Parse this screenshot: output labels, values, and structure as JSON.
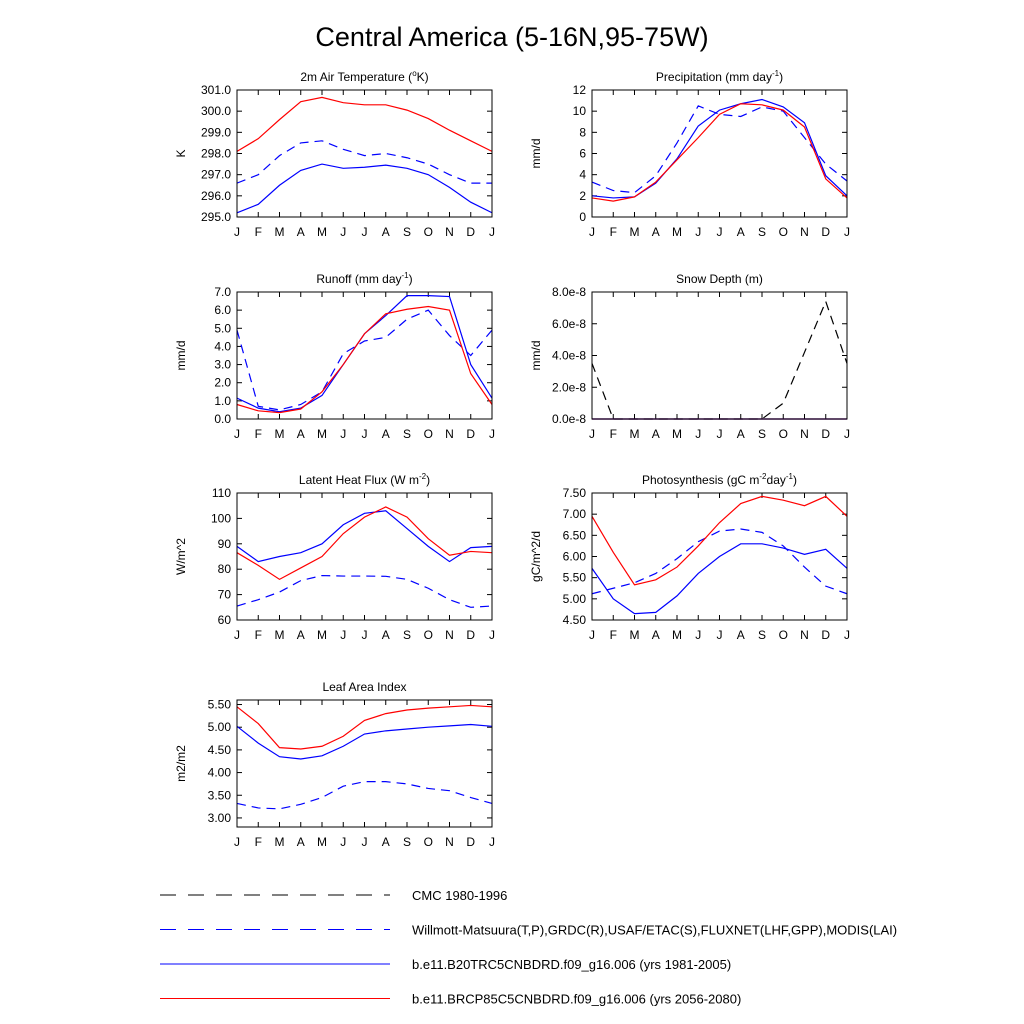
{
  "title": "Central America (5-16N,95-75W)",
  "chart_data": [
    {
      "type": "line",
      "title": [
        {
          "text": "2m Air Temperature ("
        },
        {
          "text": "o",
          "sup": true
        },
        {
          "text": "K)"
        }
      ],
      "y_label": "K",
      "categories": [
        "J",
        "F",
        "M",
        "A",
        "M",
        "J",
        "J",
        "A",
        "S",
        "O",
        "N",
        "D",
        "J"
      ],
      "ylim": [
        295,
        301
      ],
      "yticks": [
        {
          "value": 295,
          "label": "295.0"
        },
        {
          "value": 296,
          "label": "296.0"
        },
        {
          "value": 297,
          "label": "297.0"
        },
        {
          "value": 298,
          "label": "298.0"
        },
        {
          "value": 299,
          "label": "299.0"
        },
        {
          "value": 300,
          "label": "300.0"
        },
        {
          "value": 301,
          "label": "301.0"
        }
      ],
      "series": [
        {
          "color": "#0000ff",
          "dash": true,
          "values": [
            296.6,
            297.0,
            297.9,
            298.5,
            298.6,
            298.2,
            297.9,
            298.0,
            297.8,
            297.5,
            297.0,
            296.6,
            296.6
          ]
        },
        {
          "color": "#0000ff",
          "dash": false,
          "values": [
            295.2,
            295.6,
            296.5,
            297.2,
            297.5,
            297.3,
            297.35,
            297.45,
            297.3,
            297.0,
            296.4,
            295.7,
            295.2
          ]
        },
        {
          "color": "#ff0000",
          "dash": false,
          "values": [
            298.1,
            298.7,
            299.6,
            300.45,
            300.65,
            300.4,
            300.3,
            300.3,
            300.05,
            299.65,
            299.1,
            298.6,
            298.1
          ]
        }
      ]
    },
    {
      "type": "line",
      "title": [
        {
          "text": "Precipitation (mm day"
        },
        {
          "text": "-1",
          "sup": true
        },
        {
          "text": ")"
        }
      ],
      "y_label": "mm/d",
      "categories": [
        "J",
        "F",
        "M",
        "A",
        "M",
        "J",
        "J",
        "A",
        "S",
        "O",
        "N",
        "D",
        "J"
      ],
      "ylim": [
        0,
        12
      ],
      "yticks": [
        0,
        2,
        4,
        6,
        8,
        10,
        12
      ],
      "series": [
        {
          "color": "#0000ff",
          "dash": true,
          "values": [
            3.3,
            2.5,
            2.3,
            3.9,
            7.0,
            10.5,
            9.7,
            9.5,
            10.4,
            10.0,
            7.5,
            5.0,
            3.4
          ]
        },
        {
          "color": "#0000ff",
          "dash": false,
          "values": [
            2.0,
            1.8,
            1.9,
            3.2,
            5.5,
            8.6,
            10.1,
            10.7,
            11.1,
            10.4,
            8.9,
            3.9,
            2.0
          ]
        },
        {
          "color": "#ff0000",
          "dash": false,
          "values": [
            1.8,
            1.5,
            1.9,
            3.3,
            5.4,
            7.5,
            9.7,
            10.7,
            10.6,
            10.1,
            8.5,
            3.6,
            1.8
          ]
        }
      ]
    },
    {
      "type": "line",
      "title": [
        {
          "text": "Runoff (mm day"
        },
        {
          "text": "-1",
          "sup": true
        },
        {
          "text": ")"
        }
      ],
      "y_label": "mm/d",
      "categories": [
        "J",
        "F",
        "M",
        "A",
        "M",
        "J",
        "J",
        "A",
        "S",
        "O",
        "N",
        "D",
        "J"
      ],
      "ylim": [
        0,
        7
      ],
      "yticks": [
        {
          "value": 0,
          "label": "0.0"
        },
        {
          "value": 1,
          "label": "1.0"
        },
        {
          "value": 2,
          "label": "2.0"
        },
        {
          "value": 3,
          "label": "3.0"
        },
        {
          "value": 4,
          "label": "4.0"
        },
        {
          "value": 5,
          "label": "5.0"
        },
        {
          "value": 6,
          "label": "6.0"
        },
        {
          "value": 7,
          "label": "7.0"
        }
      ],
      "series": [
        {
          "color": "#0000ff",
          "dash": true,
          "values": [
            4.9,
            0.7,
            0.5,
            0.8,
            1.5,
            3.6,
            4.3,
            4.5,
            5.5,
            6.0,
            4.6,
            3.5,
            4.9
          ]
        },
        {
          "color": "#0000ff",
          "dash": false,
          "values": [
            1.15,
            0.6,
            0.4,
            0.6,
            1.3,
            3.0,
            4.7,
            5.7,
            6.8,
            6.8,
            6.75,
            3.0,
            1.15
          ]
        },
        {
          "color": "#ff0000",
          "dash": false,
          "values": [
            0.8,
            0.45,
            0.35,
            0.55,
            1.5,
            3.0,
            4.7,
            5.8,
            6.05,
            6.2,
            6.0,
            2.5,
            0.8
          ]
        }
      ]
    },
    {
      "type": "line",
      "title": [
        {
          "text": "Snow Depth (m)"
        }
      ],
      "y_label": "mm/d",
      "categories": [
        "J",
        "F",
        "M",
        "A",
        "M",
        "J",
        "J",
        "A",
        "S",
        "O",
        "N",
        "D",
        "J"
      ],
      "ylim": [
        0,
        8e-08
      ],
      "yticks": [
        {
          "value": 0,
          "label": "0.0e-8"
        },
        {
          "value": 2e-08,
          "label": "2.0e-8"
        },
        {
          "value": 4e-08,
          "label": "4.0e-8"
        },
        {
          "value": 6e-08,
          "label": "6.0e-8"
        },
        {
          "value": 8e-08,
          "label": "8.0e-8"
        }
      ],
      "series": [
        {
          "color": "#000000",
          "dash": true,
          "values": [
            3.5e-08,
            0,
            0,
            0,
            0,
            0,
            0,
            0,
            0,
            1e-08,
            4.2e-08,
            7.4e-08,
            3.5e-08
          ]
        },
        {
          "color": "#ff0000",
          "dash": false,
          "values": [
            0,
            0,
            0,
            0,
            0,
            0,
            0,
            0,
            0,
            0,
            0,
            0,
            0
          ]
        },
        {
          "color": "#0000ff",
          "dash": false,
          "values": [
            0,
            0,
            0,
            0,
            0,
            0,
            0,
            0,
            0,
            0,
            0,
            0,
            0
          ]
        }
      ]
    },
    {
      "type": "line",
      "title": [
        {
          "text": "Latent Heat Flux (W m"
        },
        {
          "text": "-2",
          "sup": true
        },
        {
          "text": ")"
        }
      ],
      "y_label": "W/m^2",
      "categories": [
        "J",
        "F",
        "M",
        "A",
        "M",
        "J",
        "J",
        "A",
        "S",
        "O",
        "N",
        "D",
        "J"
      ],
      "ylim": [
        60,
        110
      ],
      "yticks": [
        60,
        70,
        80,
        90,
        100,
        110
      ],
      "series": [
        {
          "color": "#0000ff",
          "dash": true,
          "values": [
            65.5,
            68,
            71,
            75.5,
            77.5,
            77.3,
            77.3,
            77.2,
            76,
            72.5,
            68,
            65,
            65.5
          ]
        },
        {
          "color": "#0000ff",
          "dash": false,
          "values": [
            89,
            83,
            85,
            86.5,
            90,
            97.5,
            102,
            103,
            96,
            89,
            83,
            88.5,
            89
          ]
        },
        {
          "color": "#ff0000",
          "dash": false,
          "values": [
            86.5,
            81.5,
            76,
            80.5,
            85,
            94,
            100.5,
            104.5,
            100.5,
            92,
            85.5,
            87,
            86.5
          ]
        }
      ]
    },
    {
      "type": "line",
      "title": [
        {
          "text": "Photosynthesis (gC m"
        },
        {
          "text": "-2",
          "sup": true
        },
        {
          "text": "day"
        },
        {
          "text": "-1",
          "sup": true
        },
        {
          "text": ")"
        }
      ],
      "y_label": "gC/m^2/d",
      "categories": [
        "J",
        "F",
        "M",
        "A",
        "M",
        "J",
        "J",
        "A",
        "S",
        "O",
        "N",
        "D",
        "J"
      ],
      "ylim": [
        4.5,
        7.5
      ],
      "yticks": [
        {
          "value": 4.5,
          "label": "4.50"
        },
        {
          "value": 5,
          "label": "5.00"
        },
        {
          "value": 5.5,
          "label": "5.50"
        },
        {
          "value": 6,
          "label": "6.00"
        },
        {
          "value": 6.5,
          "label": "6.50"
        },
        {
          "value": 7,
          "label": "7.00"
        },
        {
          "value": 7.5,
          "label": "7.50"
        }
      ],
      "series": [
        {
          "color": "#0000ff",
          "dash": true,
          "values": [
            5.12,
            5.25,
            5.38,
            5.6,
            5.95,
            6.35,
            6.6,
            6.65,
            6.57,
            6.25,
            5.75,
            5.3,
            5.12
          ]
        },
        {
          "color": "#0000ff",
          "dash": false,
          "values": [
            5.72,
            5.0,
            4.65,
            4.68,
            5.07,
            5.6,
            6.0,
            6.3,
            6.3,
            6.2,
            6.05,
            6.17,
            5.72
          ]
        },
        {
          "color": "#ff0000",
          "dash": false,
          "values": [
            6.95,
            6.1,
            5.33,
            5.45,
            5.75,
            6.25,
            6.8,
            7.25,
            7.42,
            7.33,
            7.2,
            7.42,
            6.95
          ]
        }
      ]
    },
    {
      "type": "line",
      "title": [
        {
          "text": "Leaf Area Index"
        }
      ],
      "y_label": "m2/m2",
      "categories": [
        "J",
        "F",
        "M",
        "A",
        "M",
        "J",
        "J",
        "A",
        "S",
        "O",
        "N",
        "D",
        "J"
      ],
      "ylim": [
        2.8,
        5.6
      ],
      "yticks": [
        {
          "value": 3,
          "label": "3.00"
        },
        {
          "value": 3.5,
          "label": "3.50"
        },
        {
          "value": 4,
          "label": "4.00"
        },
        {
          "value": 4.5,
          "label": "4.50"
        },
        {
          "value": 5,
          "label": "5.00"
        },
        {
          "value": 5.5,
          "label": "5.50"
        }
      ],
      "series": [
        {
          "color": "#0000ff",
          "dash": true,
          "values": [
            3.32,
            3.22,
            3.2,
            3.3,
            3.45,
            3.7,
            3.8,
            3.8,
            3.75,
            3.65,
            3.6,
            3.45,
            3.32
          ]
        },
        {
          "color": "#0000ff",
          "dash": false,
          "values": [
            5.02,
            4.65,
            4.35,
            4.3,
            4.37,
            4.58,
            4.85,
            4.92,
            4.96,
            5.0,
            5.03,
            5.06,
            5.02
          ]
        },
        {
          "color": "#ff0000",
          "dash": false,
          "values": [
            5.45,
            5.08,
            4.55,
            4.52,
            4.58,
            4.8,
            5.15,
            5.3,
            5.38,
            5.42,
            5.45,
            5.48,
            5.45
          ]
        }
      ]
    }
  ],
  "legend": [
    {
      "name": "CMC 1980-1996",
      "color": "#000000",
      "dash": true
    },
    {
      "name": "Willmott-Matsuura(T,P),GRDC(R),USAF/ETAC(S),FLUXNET(LHF,GPP),MODIS(LAI)",
      "color": "#0000ff",
      "dash": true
    },
    {
      "name": "b.e11.B20TRC5CNBDRD.f09_g16.006 (yrs 1981-2005)",
      "color": "#0000ff",
      "dash": false
    },
    {
      "name": "b.e11.BRCP85C5CNBDRD.f09_g16.006 (yrs 2056-2080)",
      "color": "#ff0000",
      "dash": false
    }
  ]
}
